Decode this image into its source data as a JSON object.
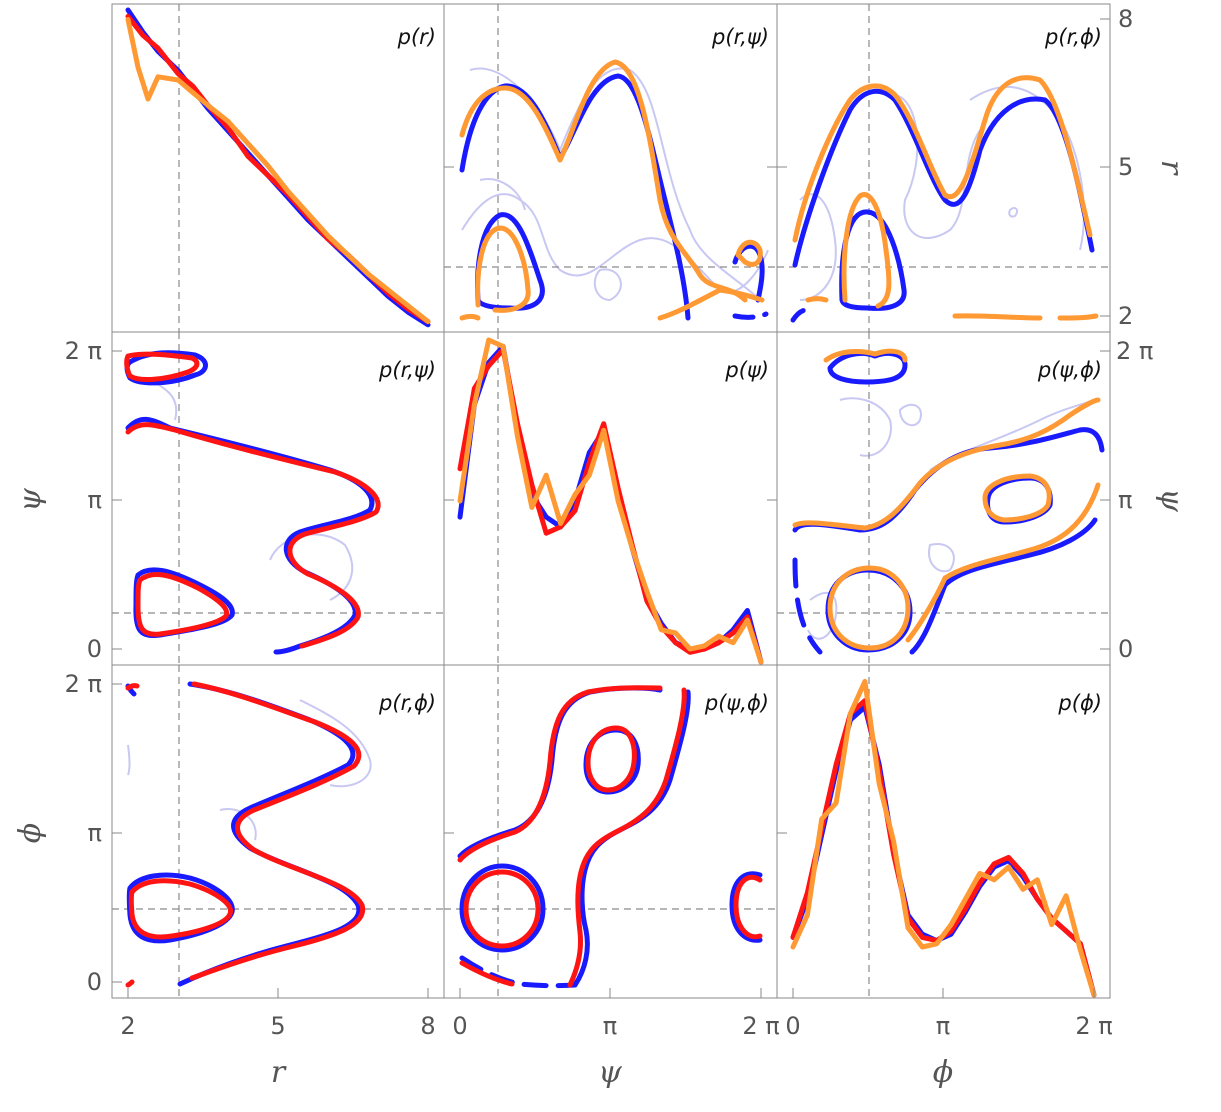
{
  "figure": {
    "x_axis_labels": [
      "r",
      "ψ",
      "ϕ"
    ],
    "y_axis_labels_left": [
      "ψ",
      "ϕ"
    ],
    "y_axis_labels_right": [
      "r",
      "ψ"
    ],
    "r_ticks": [
      "2",
      "5",
      "8"
    ],
    "angle_ticks": [
      "0",
      "π",
      "2 π"
    ]
  },
  "colors": {
    "blue": "#1a1aff",
    "red": "#ff1414",
    "orange": "#ff9933",
    "faint_blue": "#c8c8f2",
    "frame": "#8a8a8a"
  },
  "chart_data": [
    {
      "type": "line",
      "panel": "row1-col1",
      "title": "p(r)",
      "xlabel": "r",
      "xlim": [
        2,
        8
      ],
      "reference_x": 3,
      "series": [
        {
          "color": "blue",
          "x": [
            2.0,
            2.3,
            2.6,
            3.0,
            3.3,
            3.6,
            4.0,
            4.4,
            4.8,
            5.2,
            5.6,
            6.0,
            6.4,
            6.8,
            7.2,
            7.6,
            8.0
          ],
          "y": [
            1.0,
            0.93,
            0.87,
            0.81,
            0.75,
            0.69,
            0.62,
            0.55,
            0.48,
            0.41,
            0.34,
            0.28,
            0.22,
            0.16,
            0.1,
            0.05,
            0.01
          ]
        },
        {
          "color": "red",
          "x": [
            2.0,
            2.3,
            2.6,
            3.0,
            3.3,
            3.6,
            4.0,
            4.4,
            4.8,
            5.2,
            5.6,
            6.0,
            6.4,
            6.8,
            7.2,
            7.6,
            8.0
          ],
          "y": [
            0.98,
            0.92,
            0.88,
            0.8,
            0.76,
            0.7,
            0.63,
            0.54,
            0.48,
            0.42,
            0.35,
            0.28,
            0.23,
            0.17,
            0.11,
            0.06,
            0.02
          ]
        },
        {
          "color": "orange",
          "x": [
            2.0,
            2.2,
            2.4,
            2.6,
            3.0,
            3.3,
            3.6,
            4.0,
            4.4,
            4.8,
            5.2,
            5.6,
            6.0,
            6.4,
            6.8,
            7.2,
            7.6,
            8.0
          ],
          "y": [
            0.97,
            0.82,
            0.72,
            0.79,
            0.78,
            0.74,
            0.7,
            0.65,
            0.58,
            0.51,
            0.43,
            0.36,
            0.29,
            0.23,
            0.17,
            0.12,
            0.07,
            0.02
          ]
        }
      ]
    },
    {
      "type": "contour",
      "panel": "row1-col2",
      "title": "p(r,ψ)",
      "xlabel": "ψ",
      "ylabel": "r",
      "xlim": [
        "0",
        "2π"
      ],
      "ylim": [
        2,
        8
      ],
      "series": [
        {
          "color": "blue"
        },
        {
          "color": "orange"
        }
      ]
    },
    {
      "type": "contour",
      "panel": "row1-col3",
      "title": "p(r,ϕ)",
      "xlabel": "ϕ",
      "ylabel": "r",
      "xlim": [
        "0",
        "2π"
      ],
      "ylim": [
        2,
        8
      ],
      "series": [
        {
          "color": "blue"
        },
        {
          "color": "orange"
        }
      ]
    },
    {
      "type": "contour",
      "panel": "row2-col1",
      "title": "p(r,ψ)",
      "xlabel": "r",
      "ylabel": "ψ",
      "xlim": [
        2,
        8
      ],
      "ylim": [
        "0",
        "2π"
      ],
      "series": [
        {
          "color": "blue"
        },
        {
          "color": "red"
        }
      ]
    },
    {
      "type": "line",
      "panel": "row2-col2",
      "title": "p(ψ)",
      "xlabel": "ψ",
      "xlim": [
        0,
        6.283
      ],
      "reference_x": 0.785,
      "series": [
        {
          "color": "blue",
          "x": [
            0.0,
            0.3,
            0.6,
            0.9,
            1.2,
            1.5,
            1.8,
            2.1,
            2.4,
            2.7,
            3.0,
            3.3,
            3.6,
            3.9,
            4.2,
            4.5,
            4.8,
            5.1,
            5.4,
            5.7,
            6.0,
            6.283
          ],
          "y": [
            0.45,
            0.8,
            0.93,
            0.98,
            0.72,
            0.52,
            0.45,
            0.42,
            0.5,
            0.65,
            0.72,
            0.53,
            0.35,
            0.2,
            0.12,
            0.06,
            0.04,
            0.04,
            0.06,
            0.1,
            0.16,
            0.0
          ]
        },
        {
          "color": "red",
          "x": [
            0.0,
            0.3,
            0.6,
            0.9,
            1.2,
            1.5,
            1.8,
            2.1,
            2.4,
            2.7,
            3.0,
            3.3,
            3.6,
            3.9,
            4.2,
            4.5,
            4.8,
            5.1,
            5.4,
            5.7,
            6.0,
            6.283
          ],
          "y": [
            0.6,
            0.85,
            0.92,
            0.97,
            0.74,
            0.55,
            0.4,
            0.42,
            0.47,
            0.62,
            0.74,
            0.54,
            0.36,
            0.19,
            0.11,
            0.06,
            0.03,
            0.04,
            0.06,
            0.09,
            0.14,
            0.0
          ]
        },
        {
          "color": "orange",
          "x": [
            0.0,
            0.3,
            0.6,
            0.9,
            1.2,
            1.5,
            1.8,
            2.1,
            2.4,
            2.7,
            3.0,
            3.3,
            3.6,
            3.9,
            4.2,
            4.5,
            4.8,
            5.1,
            5.4,
            5.7,
            6.0,
            6.283
          ],
          "y": [
            0.5,
            0.8,
            1.0,
            0.98,
            0.7,
            0.48,
            0.58,
            0.43,
            0.52,
            0.58,
            0.72,
            0.5,
            0.35,
            0.22,
            0.1,
            0.09,
            0.04,
            0.05,
            0.08,
            0.06,
            0.13,
            0.0
          ]
        }
      ]
    },
    {
      "type": "contour",
      "panel": "row2-col3",
      "title": "p(ψ,ϕ)",
      "xlabel": "ϕ",
      "ylabel": "ψ",
      "xlim": [
        "0",
        "2π"
      ],
      "ylim": [
        "0",
        "2π"
      ],
      "series": [
        {
          "color": "blue"
        },
        {
          "color": "orange"
        }
      ]
    },
    {
      "type": "contour",
      "panel": "row3-col1",
      "title": "p(r,ϕ)",
      "xlabel": "r",
      "ylabel": "ϕ",
      "xlim": [
        2,
        8
      ],
      "ylim": [
        "0",
        "2π"
      ],
      "series": [
        {
          "color": "blue"
        },
        {
          "color": "red"
        }
      ]
    },
    {
      "type": "contour",
      "panel": "row3-col2",
      "title": "p(ψ,ϕ)",
      "xlabel": "ψ",
      "ylabel": "ϕ",
      "xlim": [
        "0",
        "2π"
      ],
      "ylim": [
        "0",
        "2π"
      ],
      "series": [
        {
          "color": "blue"
        },
        {
          "color": "red"
        }
      ]
    },
    {
      "type": "line",
      "panel": "row3-col3",
      "title": "p(ϕ)",
      "xlabel": "ϕ",
      "xlim": [
        0,
        6.283
      ],
      "reference_x": 1.571,
      "series": [
        {
          "color": "blue",
          "x": [
            0.0,
            0.3,
            0.6,
            0.9,
            1.2,
            1.5,
            1.8,
            2.1,
            2.4,
            2.7,
            3.0,
            3.3,
            3.6,
            3.9,
            4.2,
            4.5,
            4.8,
            5.1,
            5.4,
            5.7,
            6.0,
            6.283
          ],
          "y": [
            0.18,
            0.3,
            0.5,
            0.7,
            0.86,
            0.9,
            0.72,
            0.45,
            0.25,
            0.19,
            0.17,
            0.19,
            0.26,
            0.34,
            0.4,
            0.42,
            0.37,
            0.3,
            0.24,
            0.2,
            0.16,
            0.0
          ]
        },
        {
          "color": "red",
          "x": [
            0.0,
            0.3,
            0.6,
            0.9,
            1.2,
            1.5,
            1.8,
            2.1,
            2.4,
            2.7,
            3.0,
            3.3,
            3.6,
            3.9,
            4.2,
            4.5,
            4.8,
            5.1,
            5.4,
            5.7,
            6.0,
            6.283
          ],
          "y": [
            0.18,
            0.32,
            0.52,
            0.72,
            0.88,
            0.92,
            0.7,
            0.44,
            0.24,
            0.18,
            0.17,
            0.2,
            0.27,
            0.35,
            0.41,
            0.43,
            0.38,
            0.3,
            0.24,
            0.2,
            0.16,
            0.0
          ]
        },
        {
          "color": "orange",
          "x": [
            0.0,
            0.3,
            0.6,
            0.9,
            1.2,
            1.5,
            1.8,
            2.1,
            2.4,
            2.7,
            3.0,
            3.3,
            3.6,
            3.9,
            4.2,
            4.5,
            4.8,
            5.1,
            5.4,
            5.7,
            6.0,
            6.283
          ],
          "y": [
            0.15,
            0.25,
            0.55,
            0.6,
            0.88,
            0.98,
            0.66,
            0.48,
            0.21,
            0.15,
            0.16,
            0.22,
            0.3,
            0.38,
            0.36,
            0.4,
            0.33,
            0.36,
            0.22,
            0.31,
            0.14,
            0.0
          ]
        }
      ]
    }
  ]
}
